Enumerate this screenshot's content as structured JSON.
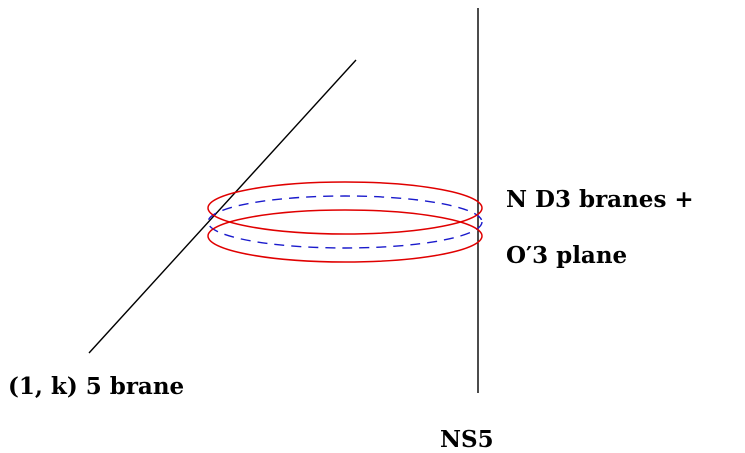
{
  "labels": {
    "stack_line1": "N D3 branes +",
    "stack_line2": "O′3 plane",
    "one_k_brane": "(1, k) 5 brane",
    "ns5": "NS5"
  },
  "colors": {
    "brane_lines": "#000000",
    "d3_rings": "#e00000",
    "o3_plane_dashed": "#1a1acc"
  }
}
